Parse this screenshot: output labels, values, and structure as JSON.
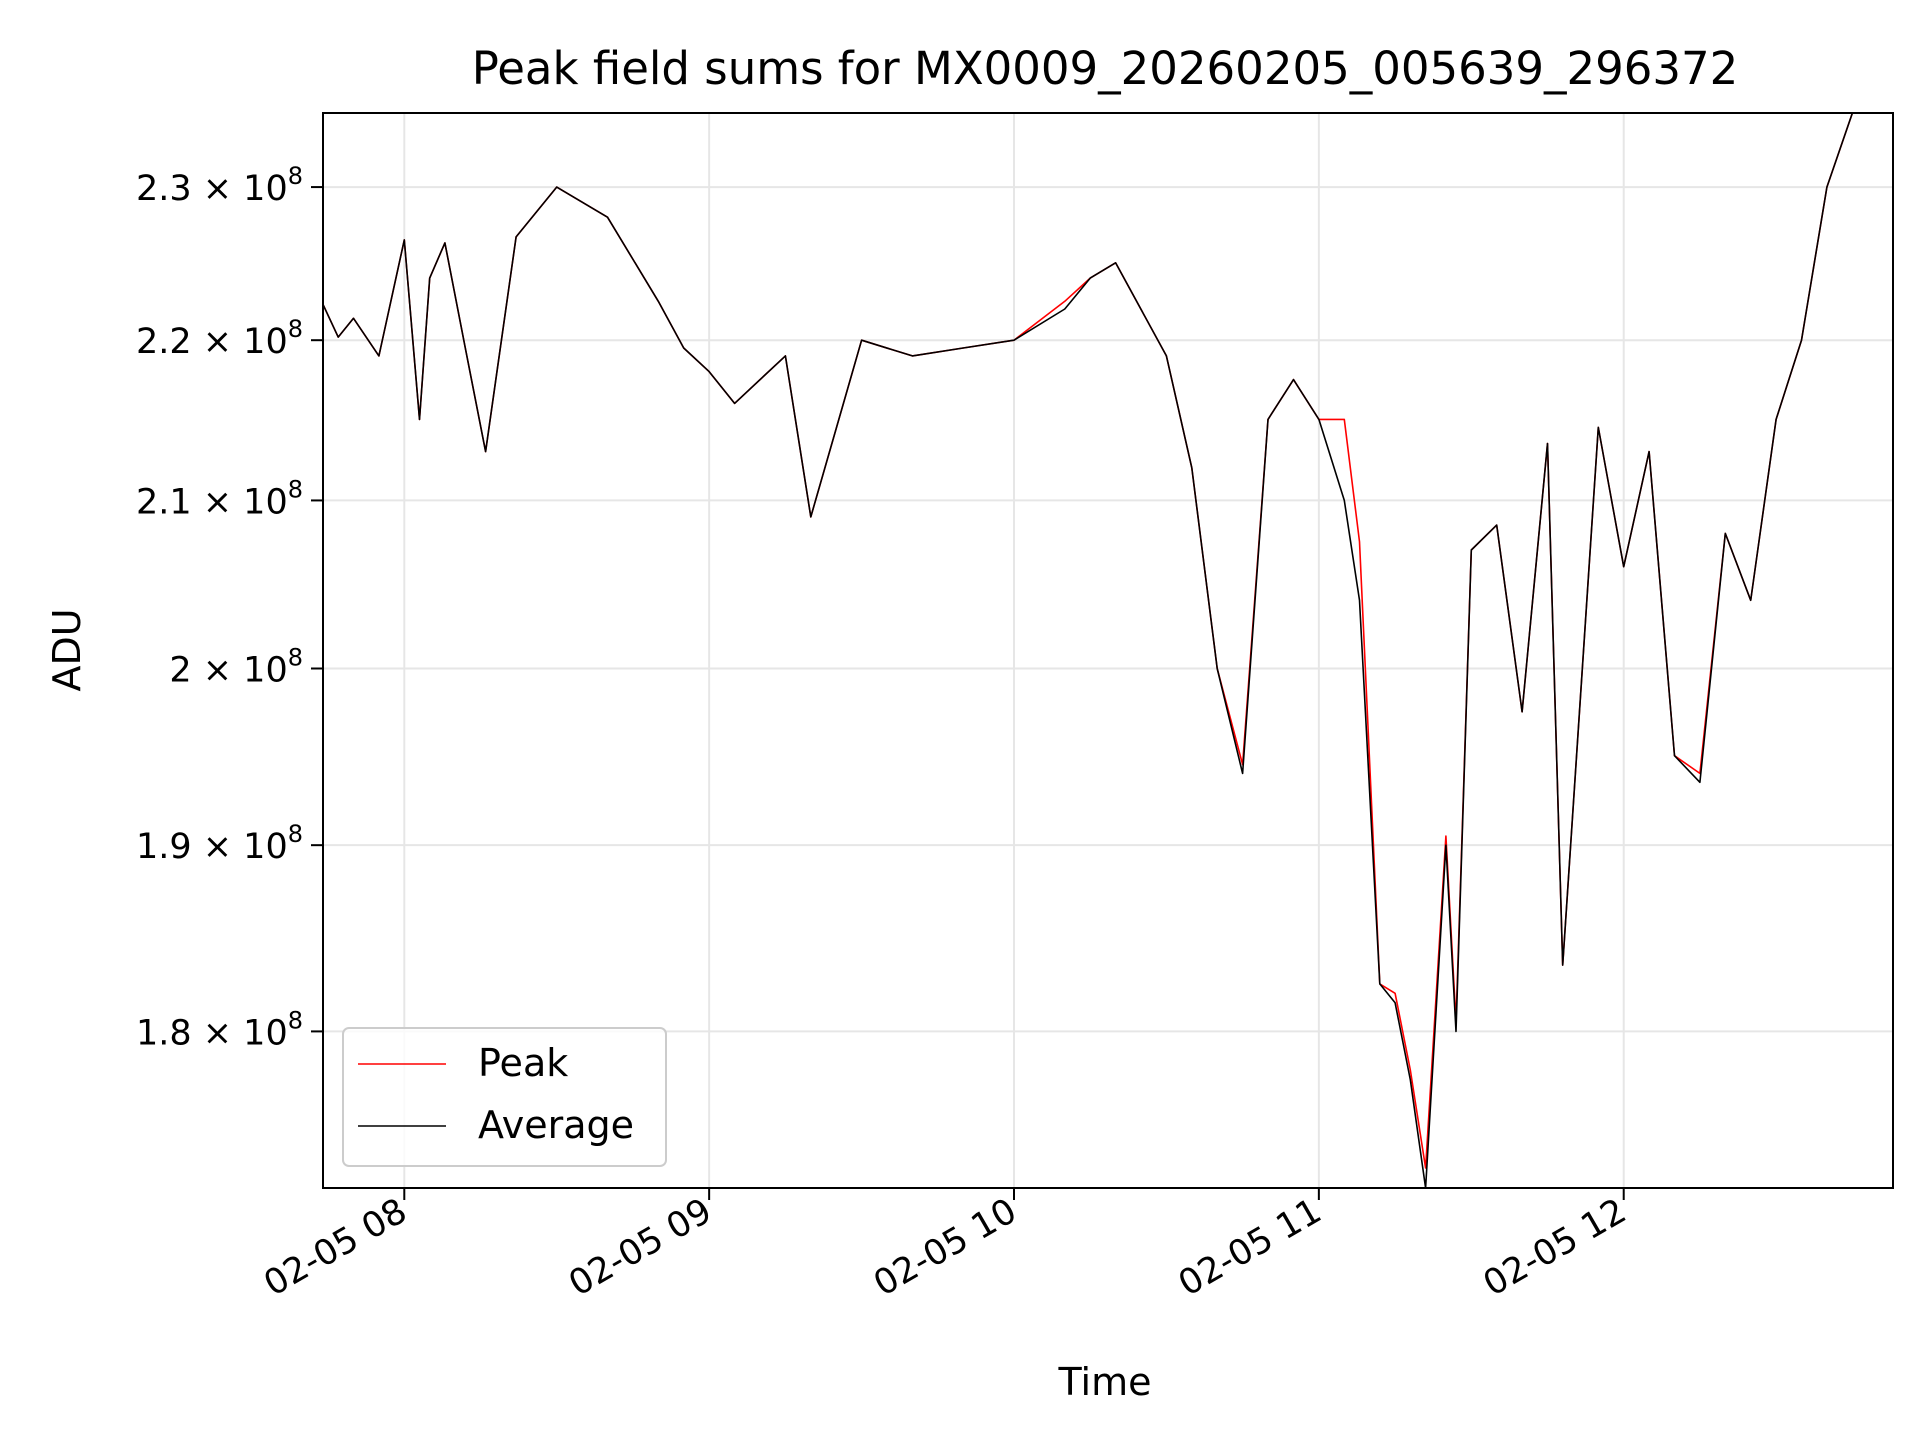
{
  "chart_data": {
    "type": "line",
    "title": "Peak field sums for MX0009_20260205_005639_296372",
    "xlabel": "Time",
    "ylabel": "ADU",
    "y_scale": "log",
    "grid": true,
    "legend_position": "lower-left",
    "xlim": [
      "2026-02-05 07:44",
      "2026-02-05 12:53"
    ],
    "ylim": [
      172000000,
      235000000
    ],
    "x_ticks": [
      {
        "value": "2026-02-05 08:00",
        "label": "02-05 08"
      },
      {
        "value": "2026-02-05 09:00",
        "label": "02-05 09"
      },
      {
        "value": "2026-02-05 10:00",
        "label": "02-05 10"
      },
      {
        "value": "2026-02-05 11:00",
        "label": "02-05 11"
      },
      {
        "value": "2026-02-05 12:00",
        "label": "02-05 12"
      }
    ],
    "y_ticks": [
      {
        "value": 180000000,
        "mantissa": "1.8",
        "label": "1.8 × 10^8"
      },
      {
        "value": 190000000,
        "mantissa": "1.9",
        "label": "1.9 × 10^8"
      },
      {
        "value": 200000000,
        "mantissa": "2",
        "label": "2 × 10^8"
      },
      {
        "value": 210000000,
        "mantissa": "2.1",
        "label": "2.1 × 10^8"
      },
      {
        "value": 220000000,
        "mantissa": "2.2",
        "label": "2.2 × 10^8"
      },
      {
        "value": 230000000,
        "mantissa": "2.3",
        "label": "2.3 × 10^8"
      }
    ],
    "colors": {
      "Peak": "#ff0000",
      "Average": "#000000"
    },
    "series": [
      {
        "name": "Peak",
        "color": "#ff0000",
        "points": [
          [
            "2026-02-05 07:44",
            222300000
          ],
          [
            "2026-02-05 07:47",
            220200000
          ],
          [
            "2026-02-05 07:50",
            221400000
          ],
          [
            "2026-02-05 07:55",
            219000000
          ],
          [
            "2026-02-05 08:00",
            226500000
          ],
          [
            "2026-02-05 08:03",
            215000000
          ],
          [
            "2026-02-05 08:05",
            224000000
          ],
          [
            "2026-02-05 08:08",
            226300000
          ],
          [
            "2026-02-05 08:12",
            219500000
          ],
          [
            "2026-02-05 08:16",
            213000000
          ],
          [
            "2026-02-05 08:22",
            226700000
          ],
          [
            "2026-02-05 08:30",
            230000000
          ],
          [
            "2026-02-05 08:40",
            228000000
          ],
          [
            "2026-02-05 08:50",
            222500000
          ],
          [
            "2026-02-05 08:55",
            219500000
          ],
          [
            "2026-02-05 09:00",
            218000000
          ],
          [
            "2026-02-05 09:05",
            216000000
          ],
          [
            "2026-02-05 09:15",
            219000000
          ],
          [
            "2026-02-05 09:20",
            209000000
          ],
          [
            "2026-02-05 09:30",
            220000000
          ],
          [
            "2026-02-05 09:40",
            219000000
          ],
          [
            "2026-02-05 09:50",
            219500000
          ],
          [
            "2026-02-05 10:00",
            220000000
          ],
          [
            "2026-02-05 10:10",
            222500000
          ],
          [
            "2026-02-05 10:15",
            224000000
          ],
          [
            "2026-02-05 10:20",
            225000000
          ],
          [
            "2026-02-05 10:30",
            219000000
          ],
          [
            "2026-02-05 10:35",
            212000000
          ],
          [
            "2026-02-05 10:40",
            200000000
          ],
          [
            "2026-02-05 10:45",
            194500000
          ],
          [
            "2026-02-05 10:50",
            215000000
          ],
          [
            "2026-02-05 10:55",
            217500000
          ],
          [
            "2026-02-05 11:00",
            215000000
          ],
          [
            "2026-02-05 11:05",
            215000000
          ],
          [
            "2026-02-05 11:08",
            207500000
          ],
          [
            "2026-02-05 11:12",
            182500000
          ],
          [
            "2026-02-05 11:15",
            182000000
          ],
          [
            "2026-02-05 11:18",
            178000000
          ],
          [
            "2026-02-05 11:21",
            173000000
          ],
          [
            "2026-02-05 11:25",
            190500000
          ],
          [
            "2026-02-05 11:27",
            180500000
          ],
          [
            "2026-02-05 11:30",
            207000000
          ],
          [
            "2026-02-05 11:35",
            208500000
          ],
          [
            "2026-02-05 11:40",
            197500000
          ],
          [
            "2026-02-05 11:45",
            213500000
          ],
          [
            "2026-02-05 11:48",
            183500000
          ],
          [
            "2026-02-05 11:55",
            214500000
          ],
          [
            "2026-02-05 12:00",
            206000000
          ],
          [
            "2026-02-05 12:05",
            213000000
          ],
          [
            "2026-02-05 12:10",
            195000000
          ],
          [
            "2026-02-05 12:15",
            194000000
          ],
          [
            "2026-02-05 12:20",
            208000000
          ],
          [
            "2026-02-05 12:25",
            204000000
          ],
          [
            "2026-02-05 12:30",
            215000000
          ],
          [
            "2026-02-05 12:35",
            220000000
          ],
          [
            "2026-02-05 12:40",
            230000000
          ],
          [
            "2026-02-05 12:45",
            235000000
          ],
          [
            "2026-02-05 12:53",
            235000000
          ]
        ]
      },
      {
        "name": "Average",
        "color": "#000000",
        "points": [
          [
            "2026-02-05 07:44",
            222300000
          ],
          [
            "2026-02-05 07:47",
            220200000
          ],
          [
            "2026-02-05 07:50",
            221400000
          ],
          [
            "2026-02-05 07:55",
            219000000
          ],
          [
            "2026-02-05 08:00",
            226500000
          ],
          [
            "2026-02-05 08:03",
            215000000
          ],
          [
            "2026-02-05 08:05",
            224000000
          ],
          [
            "2026-02-05 08:08",
            226300000
          ],
          [
            "2026-02-05 08:12",
            219500000
          ],
          [
            "2026-02-05 08:16",
            213000000
          ],
          [
            "2026-02-05 08:22",
            226700000
          ],
          [
            "2026-02-05 08:30",
            230000000
          ],
          [
            "2026-02-05 08:40",
            228000000
          ],
          [
            "2026-02-05 08:50",
            222500000
          ],
          [
            "2026-02-05 08:55",
            219500000
          ],
          [
            "2026-02-05 09:00",
            218000000
          ],
          [
            "2026-02-05 09:05",
            216000000
          ],
          [
            "2026-02-05 09:15",
            219000000
          ],
          [
            "2026-02-05 09:20",
            209000000
          ],
          [
            "2026-02-05 09:30",
            220000000
          ],
          [
            "2026-02-05 09:40",
            219000000
          ],
          [
            "2026-02-05 09:50",
            219500000
          ],
          [
            "2026-02-05 10:00",
            220000000
          ],
          [
            "2026-02-05 10:10",
            222000000
          ],
          [
            "2026-02-05 10:15",
            224000000
          ],
          [
            "2026-02-05 10:20",
            225000000
          ],
          [
            "2026-02-05 10:30",
            219000000
          ],
          [
            "2026-02-05 10:35",
            212000000
          ],
          [
            "2026-02-05 10:40",
            200000000
          ],
          [
            "2026-02-05 10:45",
            194000000
          ],
          [
            "2026-02-05 10:50",
            215000000
          ],
          [
            "2026-02-05 10:55",
            217500000
          ],
          [
            "2026-02-05 11:00",
            215000000
          ],
          [
            "2026-02-05 11:05",
            210000000
          ],
          [
            "2026-02-05 11:08",
            204000000
          ],
          [
            "2026-02-05 11:12",
            182500000
          ],
          [
            "2026-02-05 11:15",
            181500000
          ],
          [
            "2026-02-05 11:18",
            177500000
          ],
          [
            "2026-02-05 11:21",
            172000000
          ],
          [
            "2026-02-05 11:25",
            190000000
          ],
          [
            "2026-02-05 11:27",
            180000000
          ],
          [
            "2026-02-05 11:30",
            207000000
          ],
          [
            "2026-02-05 11:35",
            208500000
          ],
          [
            "2026-02-05 11:40",
            197500000
          ],
          [
            "2026-02-05 11:45",
            213500000
          ],
          [
            "2026-02-05 11:48",
            183500000
          ],
          [
            "2026-02-05 11:55",
            214500000
          ],
          [
            "2026-02-05 12:00",
            206000000
          ],
          [
            "2026-02-05 12:05",
            213000000
          ],
          [
            "2026-02-05 12:10",
            195000000
          ],
          [
            "2026-02-05 12:15",
            193500000
          ],
          [
            "2026-02-05 12:20",
            208000000
          ],
          [
            "2026-02-05 12:25",
            204000000
          ],
          [
            "2026-02-05 12:30",
            215000000
          ],
          [
            "2026-02-05 12:35",
            220000000
          ],
          [
            "2026-02-05 12:40",
            230000000
          ],
          [
            "2026-02-05 12:45",
            235000000
          ],
          [
            "2026-02-05 12:53",
            235000000
          ]
        ]
      }
    ]
  }
}
